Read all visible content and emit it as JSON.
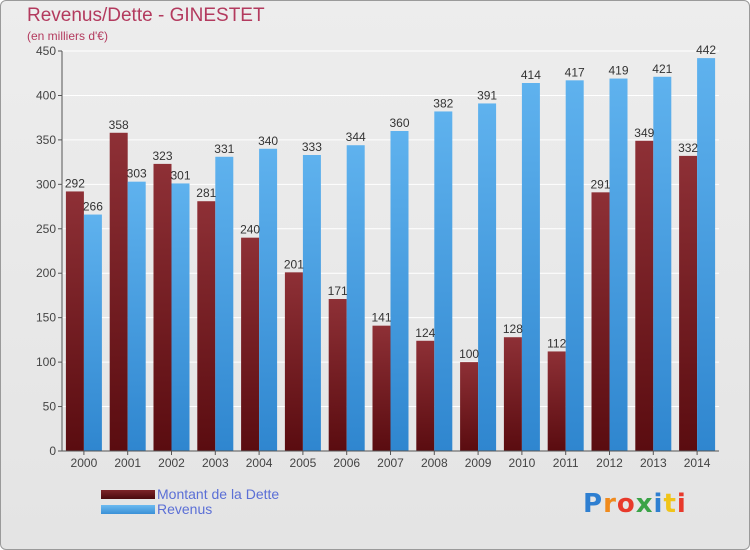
{
  "header": {
    "title": "Revenus/Dette - GINESTET",
    "subtitle": "(en milliers d'€)"
  },
  "chart_data": {
    "type": "bar",
    "categories": [
      "2000",
      "2001",
      "2002",
      "2003",
      "2004",
      "2005",
      "2006",
      "2007",
      "2008",
      "2009",
      "2010",
      "2011",
      "2012",
      "2013",
      "2014"
    ],
    "series": [
      {
        "name": "Montant de la Dette",
        "values": [
          292,
          358,
          323,
          281,
          240,
          201,
          171,
          141,
          124,
          100,
          128,
          112,
          291,
          349,
          332
        ],
        "color": "#6b1a1f"
      },
      {
        "name": "Revenus",
        "values": [
          266,
          303,
          301,
          331,
          340,
          333,
          344,
          360,
          382,
          391,
          414,
          417,
          419,
          421,
          442
        ],
        "color": "#4aa3e6"
      }
    ],
    "ylim": [
      0,
      450
    ],
    "yticks": [
      0,
      50,
      100,
      150,
      200,
      250,
      300,
      350,
      400,
      450
    ],
    "grid": true,
    "legend": "bottom-left"
  },
  "logo": {
    "letters": [
      "P",
      "r",
      "o",
      "x",
      "i",
      "t",
      "i"
    ],
    "colors": [
      "#2e7fd1",
      "#f08a1c",
      "#e8392b",
      "#3aa347",
      "#2e7fd1",
      "#f0c419",
      "#e8392b"
    ]
  }
}
